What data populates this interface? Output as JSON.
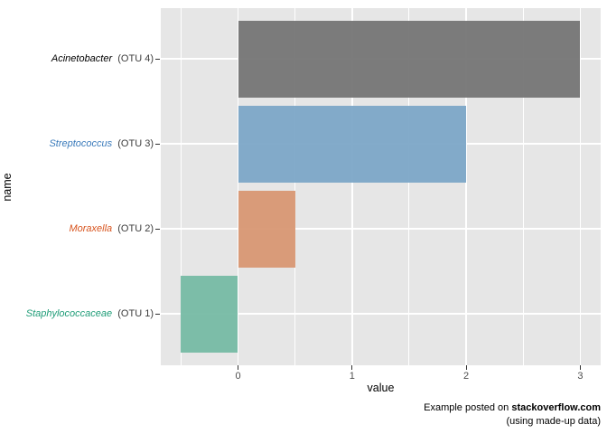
{
  "figure": {
    "background": "#ffffff",
    "panel_background": "#e6e6e6",
    "gridline_color": "#ffffff",
    "axis_text_color": "#4d4d4d",
    "axis_title_color": "#000000",
    "tick_mark_color": "#333333"
  },
  "chart_data": {
    "type": "bar",
    "orientation": "horizontal",
    "xlabel": "value",
    "ylabel": "name",
    "x_ticks": [
      "0",
      "1",
      "2",
      "3"
    ],
    "x_minor_gridlines": [
      -0.5,
      0.5,
      1.5,
      2.5
    ],
    "xlim": [
      -0.675,
      3.175
    ],
    "grid": "white major and minor gridlines on grey panel, ggplot style",
    "legend_position": "none",
    "items": [
      {
        "taxon": "Acinetobacter",
        "otu": "(OTU 4)",
        "value": 3,
        "bar_color": "#727272",
        "label_color": "#000000"
      },
      {
        "taxon": "Streptococcus",
        "otu": "(OTU 3)",
        "value": 2,
        "bar_color": "#7aa5c6",
        "label_color": "#3b7bbb"
      },
      {
        "taxon": "Moraxella",
        "otu": "(OTU 2)",
        "value": 0.5,
        "bar_color": "#d79470",
        "label_color": "#d8551f"
      },
      {
        "taxon": "Staphylococcaceae",
        "otu": "(OTU 1)",
        "value": -0.5,
        "bar_color": "#73b9a2",
        "label_color": "#1e9c77"
      }
    ]
  },
  "caption": {
    "line1_prefix": "Example posted on ",
    "line1_bold": "stackoverflow.com",
    "line2": "(using made-up data)"
  }
}
